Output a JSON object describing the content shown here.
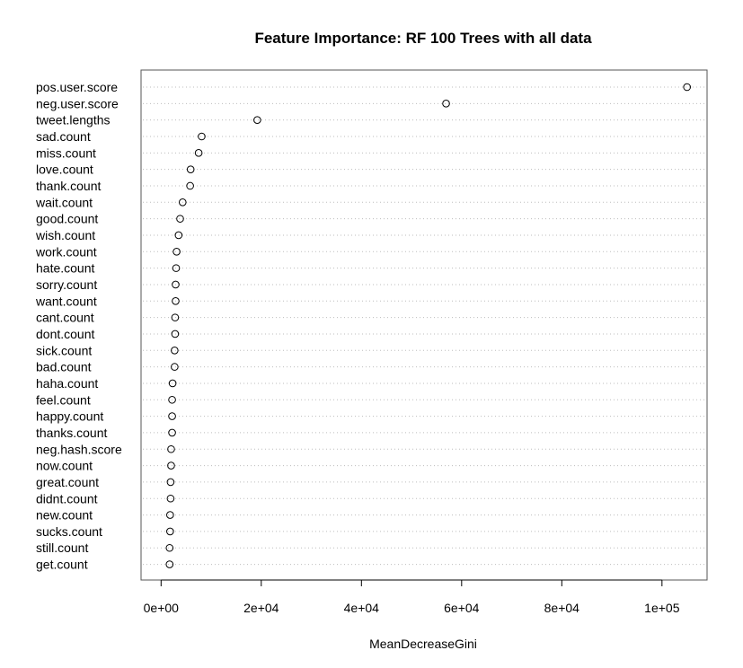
{
  "chart_data": {
    "type": "scatter",
    "title": "Feature Importance: RF 100 Trees with all data",
    "xlabel": "MeanDecreaseGini",
    "ylabel": "",
    "xlim": [
      -4000,
      109000
    ],
    "xticks": [
      0,
      20000,
      40000,
      60000,
      80000,
      100000
    ],
    "xtick_labels": [
      "0e+00",
      "2e+04",
      "4e+04",
      "6e+04",
      "8e+04",
      "1e+05"
    ],
    "grid": true,
    "categories": [
      "pos.user.score",
      "neg.user.score",
      "tweet.lengths",
      "sad.count",
      "miss.count",
      "love.count",
      "thank.count",
      "wait.count",
      "good.count",
      "wish.count",
      "work.count",
      "hate.count",
      "sorry.count",
      "want.count",
      "cant.count",
      "dont.count",
      "sick.count",
      "bad.count",
      "haha.count",
      "feel.count",
      "happy.count",
      "thanks.count",
      "neg.hash.score",
      "now.count",
      "great.count",
      "didnt.count",
      "new.count",
      "sucks.count",
      "still.count",
      "get.count"
    ],
    "values": [
      105000,
      56900,
      19200,
      8100,
      7500,
      5900,
      5800,
      4300,
      3800,
      3500,
      3100,
      3000,
      2900,
      2900,
      2800,
      2800,
      2700,
      2700,
      2300,
      2200,
      2200,
      2200,
      2000,
      2000,
      1900,
      1900,
      1800,
      1800,
      1700,
      1700
    ]
  }
}
